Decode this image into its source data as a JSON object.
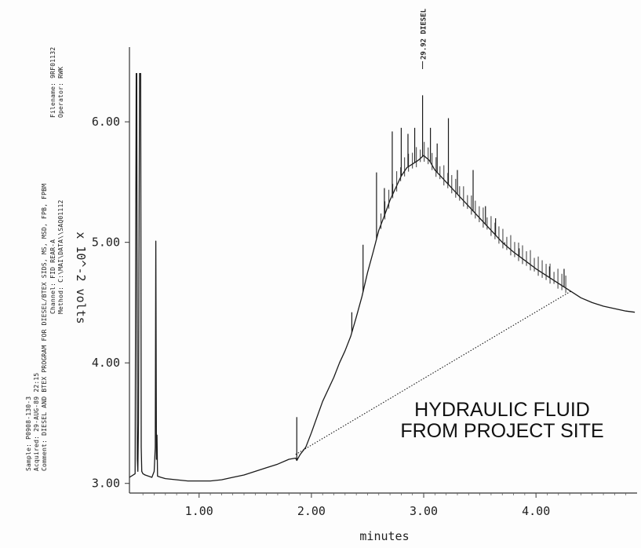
{
  "header": {
    "filename": "Filename: 9RF01132",
    "operator": "Operator: RWK",
    "sample": "Sample: P0908-130-3",
    "acquired": "Acquired: 29-AUG-89  22:15",
    "comment": "Comment: DIESEL AND BTEX PROGRAM FOR DIESEL/BTEX SIDS, MS, MSD, FPB, FPBM",
    "channel": "Channel: FID REAR-A",
    "method": "Method: C:\\MAI\\DATA\\\\SAQ01112"
  },
  "chart_data": {
    "type": "line",
    "title": "",
    "xlabel": "minutes",
    "ylabel": "x 10^-2 volts",
    "xlim": [
      0.38,
      4.9
    ],
    "ylim": [
      2.92,
      6.75
    ],
    "x_ticks": [
      1.0,
      2.0,
      3.0,
      4.0
    ],
    "x_tick_labels": [
      "1.00",
      "2.00",
      "3.00",
      "4.00"
    ],
    "y_ticks": [
      3.0,
      4.0,
      5.0,
      6.0
    ],
    "y_tick_labels": [
      "3.00",
      "4.00",
      "5.00",
      "6.00"
    ],
    "grid": false,
    "annotation_lines": [
      "HYDRAULIC FLUID",
      "FROM PROJECT SITE"
    ],
    "peak_label": "29.92 DIESEL",
    "peak_x": 2.99,
    "series": [
      {
        "style": "solid",
        "x": [
          0.38,
          0.43,
          0.44,
          0.445,
          0.45,
          0.455,
          0.46,
          0.47,
          0.48,
          0.485,
          0.49,
          0.5,
          0.52,
          0.55,
          0.58,
          0.6,
          0.61,
          0.615,
          0.62,
          0.625,
          0.63,
          0.66,
          0.7,
          0.8,
          0.9,
          1.0,
          1.1,
          1.2,
          1.3,
          1.4,
          1.5,
          1.6,
          1.7,
          1.8,
          1.86,
          1.87,
          1.9,
          1.95,
          2.0,
          2.05,
          2.1,
          2.2,
          2.25,
          2.3,
          2.35,
          2.4,
          2.45,
          2.5,
          2.55,
          2.6,
          2.65,
          2.7,
          2.75,
          2.8,
          2.85,
          2.9,
          2.95,
          3.0,
          3.05,
          3.1,
          3.15,
          3.2,
          3.25,
          3.3,
          3.4,
          3.5,
          3.6,
          3.7,
          3.8,
          3.9,
          4.0,
          4.1,
          4.2,
          4.3,
          4.4,
          4.5,
          4.6,
          4.7,
          4.8,
          4.88
        ],
        "y": [
          3.05,
          3.08,
          6.4,
          6.4,
          3.2,
          3.1,
          3.5,
          6.4,
          6.4,
          3.3,
          3.1,
          3.08,
          3.07,
          3.06,
          3.05,
          3.1,
          3.3,
          5.01,
          3.2,
          3.4,
          3.06,
          3.05,
          3.04,
          3.03,
          3.02,
          3.02,
          3.02,
          3.03,
          3.05,
          3.07,
          3.1,
          3.13,
          3.16,
          3.2,
          3.21,
          3.19,
          3.24,
          3.3,
          3.42,
          3.55,
          3.68,
          3.88,
          4.0,
          4.1,
          4.22,
          4.38,
          4.55,
          4.75,
          4.92,
          5.1,
          5.22,
          5.35,
          5.45,
          5.55,
          5.62,
          5.65,
          5.68,
          5.72,
          5.68,
          5.6,
          5.55,
          5.5,
          5.45,
          5.4,
          5.3,
          5.2,
          5.1,
          5.0,
          4.92,
          4.85,
          4.78,
          4.72,
          4.66,
          4.6,
          4.54,
          4.5,
          4.47,
          4.45,
          4.43,
          4.42
        ],
        "spikes": [
          {
            "x": 0.615,
            "y": 5.01
          },
          {
            "x": 1.87,
            "y": 3.55
          },
          {
            "x": 2.36,
            "y": 4.42
          },
          {
            "x": 2.46,
            "y": 4.98
          },
          {
            "x": 2.58,
            "y": 5.58
          },
          {
            "x": 2.65,
            "y": 5.45
          },
          {
            "x": 2.72,
            "y": 5.92
          },
          {
            "x": 2.8,
            "y": 5.95
          },
          {
            "x": 2.86,
            "y": 5.9
          },
          {
            "x": 2.92,
            "y": 5.95
          },
          {
            "x": 2.99,
            "y": 6.22
          },
          {
            "x": 3.06,
            "y": 5.95
          },
          {
            "x": 3.12,
            "y": 5.82
          },
          {
            "x": 3.22,
            "y": 6.03
          },
          {
            "x": 3.3,
            "y": 5.6
          },
          {
            "x": 3.44,
            "y": 5.6
          },
          {
            "x": 3.55,
            "y": 5.3
          },
          {
            "x": 3.64,
            "y": 5.2
          },
          {
            "x": 3.72,
            "y": 5.0
          },
          {
            "x": 3.85,
            "y": 4.95
          },
          {
            "x": 4.12,
            "y": 4.8
          },
          {
            "x": 4.25,
            "y": 4.78
          }
        ]
      },
      {
        "style": "dotted",
        "x": [
          1.86,
          4.32
        ],
        "y": [
          3.24,
          4.6
        ]
      }
    ]
  }
}
